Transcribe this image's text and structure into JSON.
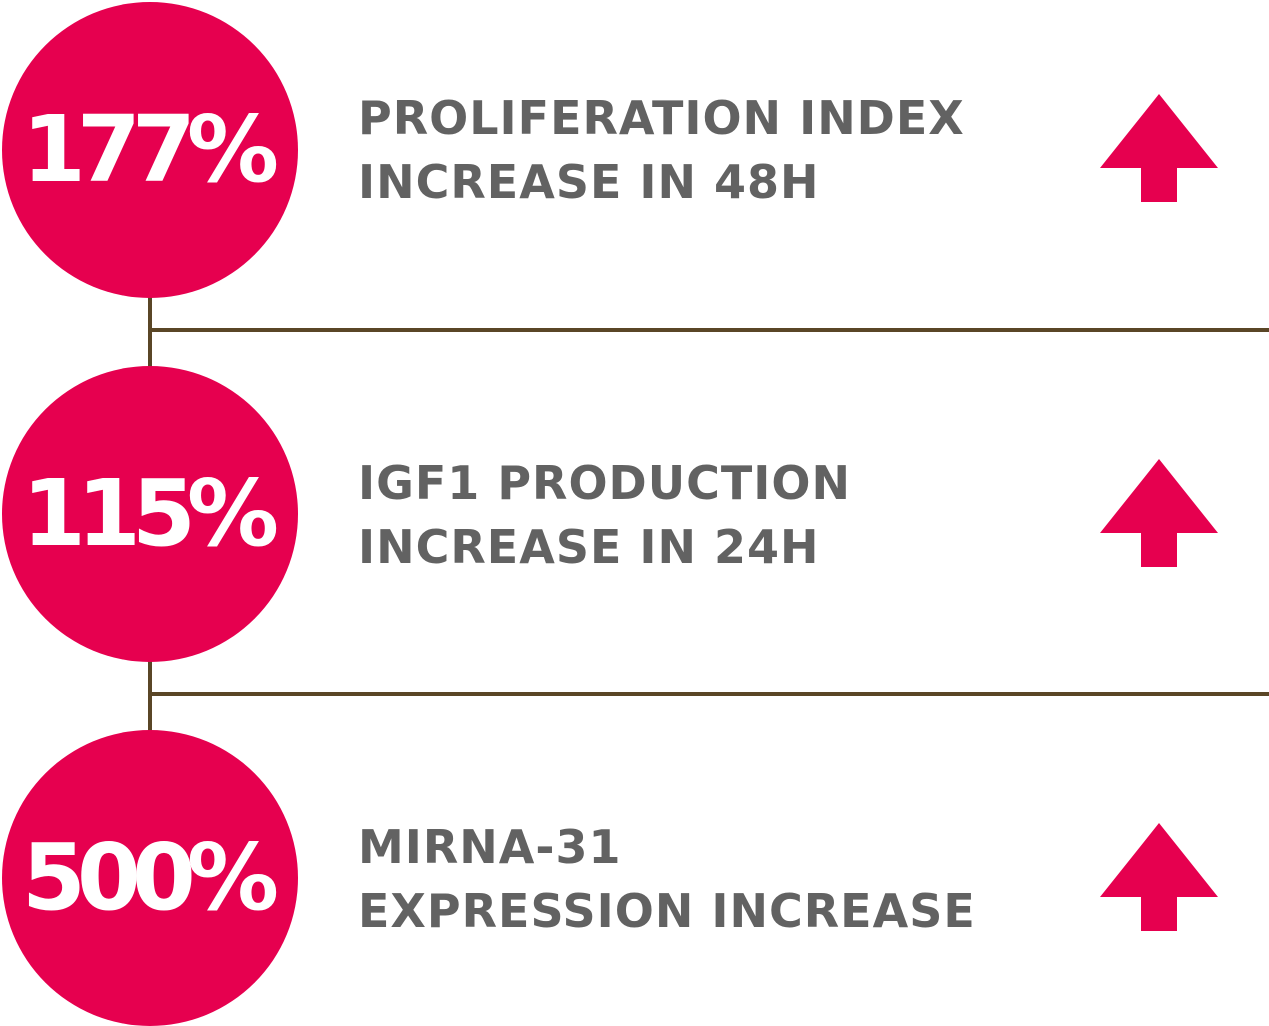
{
  "colors": {
    "accent": "#e6004f",
    "text": "#626262",
    "connector": "#5a4626"
  },
  "stats": [
    {
      "value": "177%",
      "line1": "PROLIFERATION INDEX",
      "line2": "INCREASE IN 48H",
      "icon": "arrow-up-icon"
    },
    {
      "value": "115%",
      "line1": "IGF1 PRODUCTION",
      "line2": "INCREASE IN 24H",
      "icon": "arrow-up-icon"
    },
    {
      "value": "500%",
      "line1": "MIRNA-31",
      "line2": "EXPRESSION INCREASE",
      "icon": "arrow-up-icon"
    }
  ]
}
